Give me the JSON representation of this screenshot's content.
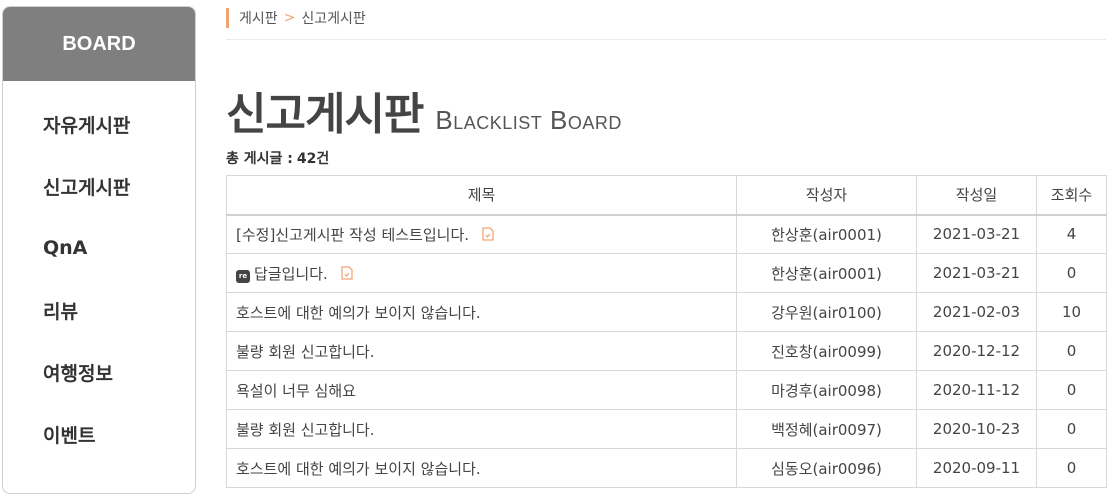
{
  "sidebar": {
    "header": "BOARD",
    "items": [
      {
        "label": "자유게시판"
      },
      {
        "label": "신고게시판"
      },
      {
        "label": "QnA"
      },
      {
        "label": "리뷰"
      },
      {
        "label": "여행정보"
      },
      {
        "label": "이벤트"
      }
    ]
  },
  "breadcrumb": {
    "home": "게시판",
    "separator": ">",
    "current": "신고게시판"
  },
  "page": {
    "title": "신고게시판",
    "subtitle": "Blacklist Board",
    "total_label": "총 게시글 :",
    "total_value": "42건"
  },
  "table": {
    "columns": [
      "제목",
      "작성자",
      "작성일",
      "조회수"
    ],
    "rows": [
      {
        "title": "[수정]신고게시판 작성 테스트입니다.",
        "author": "한상훈(air0001)",
        "date": "2021-03-21",
        "views": "4"
      },
      {
        "title": "답글입니다.",
        "author": "한상훈(air0001)",
        "date": "2021-03-21",
        "views": "0"
      },
      {
        "title": "호스트에 대한 예의가 보이지 않습니다.",
        "author": "강우원(air0100)",
        "date": "2021-02-03",
        "views": "10"
      },
      {
        "title": "불량 회원 신고합니다.",
        "author": "진호창(air0099)",
        "date": "2020-12-12",
        "views": "0"
      },
      {
        "title": "욕설이 너무 심해요",
        "author": "마경후(air0098)",
        "date": "2020-11-12",
        "views": "0"
      },
      {
        "title": "불량 회원 신고합니다.",
        "author": "백정혜(air0097)",
        "date": "2020-10-23",
        "views": "0"
      },
      {
        "title": "호스트에 대한 예의가 보이지 않습니다.",
        "author": "심동오(air0096)",
        "date": "2020-09-11",
        "views": "0"
      }
    ],
    "reply_badge": "re"
  },
  "colors": {
    "accent": "#f0a374",
    "sidebar_header": "#7f7f7f"
  }
}
